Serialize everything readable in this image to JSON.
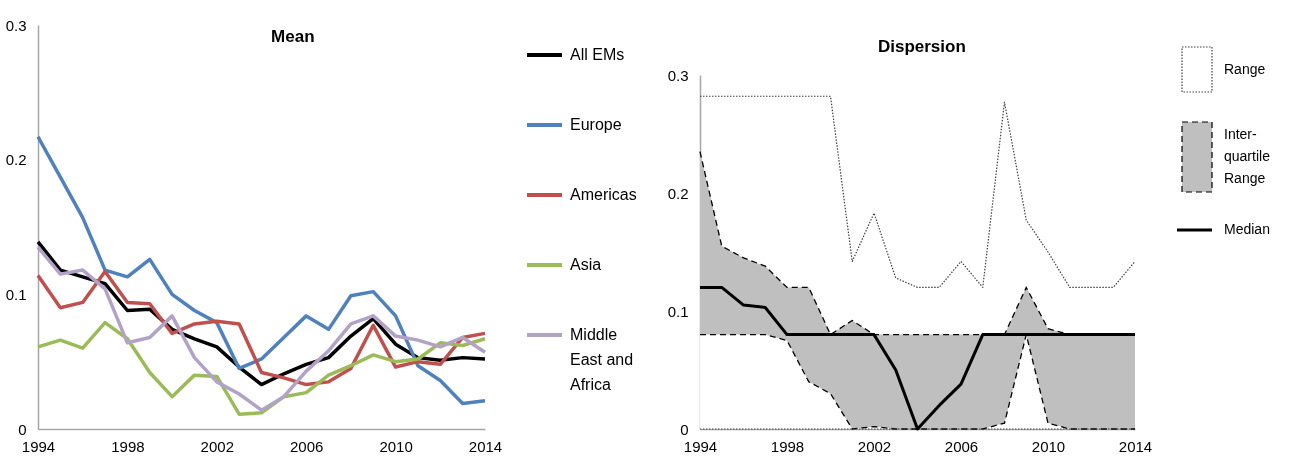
{
  "chart_data": [
    {
      "type": "line",
      "title": "Mean",
      "x": [
        1994,
        1995,
        1996,
        1997,
        1998,
        1999,
        2000,
        2001,
        2002,
        2003,
        2004,
        2005,
        2006,
        2007,
        2008,
        2009,
        2010,
        2011,
        2012,
        2013,
        2014
      ],
      "xlim": [
        1994,
        2014
      ],
      "xticks": [
        1994,
        1998,
        2002,
        2006,
        2010,
        2014
      ],
      "ylim": [
        0,
        0.3
      ],
      "yticks": [
        0,
        0.1,
        0.2,
        0.3
      ],
      "grid": false,
      "legend": "right",
      "series": [
        {
          "name": "All EMs",
          "color": "#000000",
          "values": [
            0.139,
            0.118,
            0.113,
            0.108,
            0.088,
            0.089,
            0.074,
            0.067,
            0.061,
            0.046,
            0.033,
            0.041,
            0.048,
            0.053,
            0.069,
            0.082,
            0.063,
            0.053,
            0.051,
            0.053,
            0.052
          ]
        },
        {
          "name": "Europe",
          "color": "#4f81bd",
          "values": [
            0.217,
            0.187,
            0.157,
            0.118,
            0.113,
            0.126,
            0.1,
            0.088,
            0.079,
            0.045,
            0.052,
            0.068,
            0.084,
            0.074,
            0.099,
            0.102,
            0.084,
            0.047,
            0.036,
            0.019,
            0.021
          ]
        },
        {
          "name": "Americas",
          "color": "#c0504d",
          "values": [
            0.114,
            0.09,
            0.094,
            0.117,
            0.094,
            0.093,
            0.071,
            0.078,
            0.08,
            0.078,
            0.042,
            0.038,
            0.033,
            0.035,
            0.045,
            0.077,
            0.046,
            0.05,
            0.048,
            0.068,
            0.071
          ]
        },
        {
          "name": "Asia",
          "color": "#9bbb59",
          "values": [
            0.061,
            0.066,
            0.06,
            0.079,
            0.067,
            0.042,
            0.024,
            0.04,
            0.039,
            0.011,
            0.012,
            0.024,
            0.027,
            0.04,
            0.047,
            0.055,
            0.05,
            0.052,
            0.064,
            0.062,
            0.067
          ]
        },
        {
          "name": "Middle East and Africa",
          "color": "#b3a2c7",
          "values": [
            0.135,
            0.115,
            0.118,
            0.104,
            0.064,
            0.068,
            0.084,
            0.053,
            0.035,
            0.026,
            0.014,
            0.024,
            0.043,
            0.058,
            0.078,
            0.084,
            0.069,
            0.066,
            0.061,
            0.068,
            0.057
          ]
        }
      ]
    },
    {
      "type": "line",
      "title": "Dispersion",
      "x": [
        1994,
        1995,
        1996,
        1997,
        1998,
        1999,
        2000,
        2001,
        2002,
        2003,
        2004,
        2005,
        2006,
        2007,
        2008,
        2009,
        2010,
        2011,
        2012,
        2013,
        2014
      ],
      "xlim": [
        1994,
        2014
      ],
      "xticks": [
        1994,
        1998,
        2002,
        2006,
        2010,
        2014
      ],
      "ylim": [
        0,
        0.3
      ],
      "yticks": [
        0,
        0.1,
        0.2,
        0.3
      ],
      "grid": false,
      "legend": "right",
      "series": [
        {
          "name": "Range",
          "type": "line",
          "line_style": "dotted",
          "color": "#404040",
          "values": [
            0.282,
            0.282,
            0.282,
            0.282,
            0.282,
            0.282,
            0.282,
            0.142,
            0.183,
            0.128,
            0.12,
            0.12,
            0.142,
            0.12,
            0.277,
            0.177,
            0.15,
            0.12,
            0.12,
            0.12,
            0.142
          ]
        },
        {
          "type": "line",
          "line_style": "dotted",
          "color": "#404040",
          "values": [
            0,
            0,
            0,
            0,
            0,
            0,
            0,
            0,
            0,
            0,
            0,
            0,
            0,
            0,
            0,
            0,
            0,
            0,
            0,
            0,
            0
          ]
        },
        {
          "name": "Inter-quartile Range",
          "type": "area",
          "line_style": "dashed",
          "color": "#bfbfbf",
          "values": [
            0.235,
            0.155,
            0.145,
            0.138,
            0.12,
            0.12,
            0.08,
            0.092,
            0.08,
            0.08,
            0.08,
            0.08,
            0.08,
            0.08,
            0.08,
            0.12,
            0.085,
            0.08,
            0.08,
            0.08,
            0.08
          ]
        },
        {
          "type": "area",
          "line_style": "dashed",
          "color": "#ffffff",
          "values": [
            0.08,
            0.08,
            0.08,
            0.08,
            0.075,
            0.04,
            0.03,
            0,
            0.002,
            0,
            0,
            0,
            0,
            0,
            0.005,
            0.08,
            0.005,
            0,
            0,
            0,
            0
          ]
        },
        {
          "name": "Median",
          "type": "line",
          "line_style": "solid",
          "color": "#000000",
          "values": [
            0.12,
            0.12,
            0.105,
            0.103,
            0.08,
            0.08,
            0.08,
            0.08,
            0.08,
            0.05,
            0,
            0.02,
            0.038,
            0.08,
            0.08,
            0.08,
            0.08,
            0.08,
            0.08,
            0.08,
            0.08
          ]
        }
      ]
    }
  ]
}
